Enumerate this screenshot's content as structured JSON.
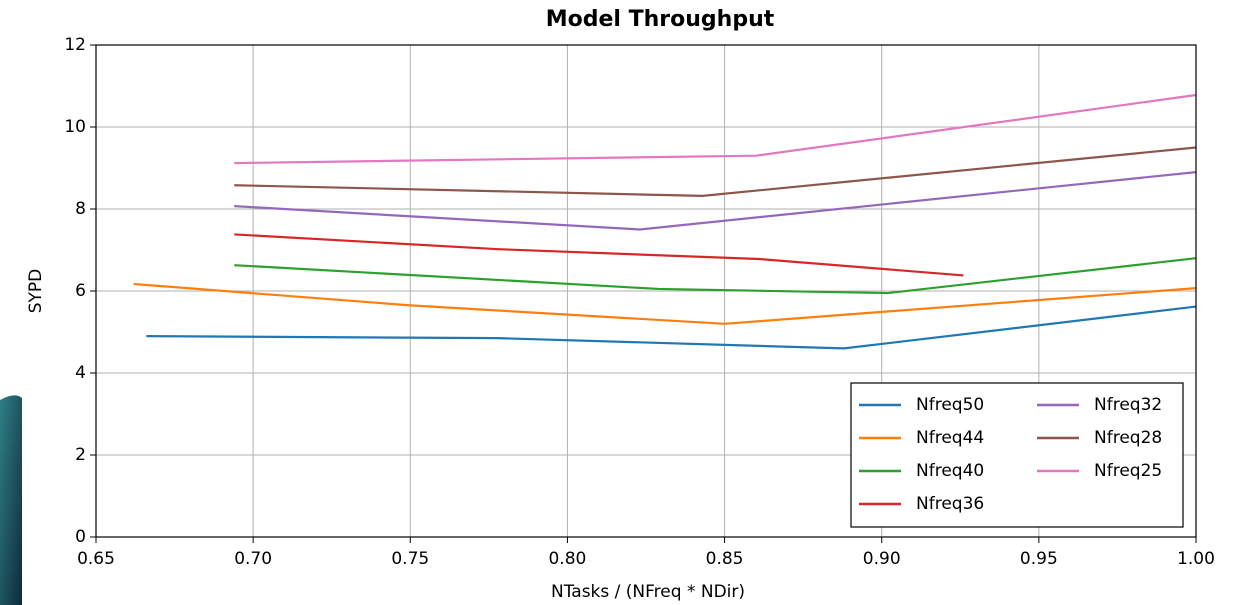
{
  "chart_data": {
    "type": "line",
    "title": "Model Throughput",
    "x_label": "NTasks / (NFreq * NDir)",
    "y_label": "SYPD",
    "xlim": [
      0.65,
      1.0
    ],
    "ylim": [
      0,
      12
    ],
    "xticks": [
      0.65,
      {
        "value": 0.7,
        "label": "0.70"
      },
      0.75,
      {
        "value": 0.8,
        "label": "0.80"
      },
      0.85,
      {
        "value": 0.9,
        "label": "0.90"
      },
      0.95,
      {
        "value": 1.0,
        "label": "1.00"
      }
    ],
    "yticks": [
      0,
      2,
      4,
      6,
      8,
      10,
      12
    ],
    "grid": true,
    "legend": "lower right",
    "series": [
      {
        "name": "Nfreq50",
        "color": "#1f77b4",
        "x": [
          0.666,
          0.778,
          0.888,
          1.0
        ],
        "values": [
          4.9,
          4.85,
          4.6,
          5.62
        ]
      },
      {
        "name": "Nfreq44",
        "color": "#ff7f0e",
        "x": [
          0.662,
          0.75,
          0.85,
          1.0
        ],
        "values": [
          6.17,
          5.65,
          5.2,
          6.07
        ]
      },
      {
        "name": "Nfreq40",
        "color": "#2ca02c",
        "x": [
          0.694,
          0.829,
          0.902,
          1.0
        ],
        "values": [
          6.63,
          6.05,
          5.95,
          6.8
        ]
      },
      {
        "name": "Nfreq36",
        "color": "#d62728",
        "x": [
          0.694,
          0.778,
          0.861,
          0.926
        ],
        "values": [
          7.38,
          7.02,
          6.78,
          6.38
        ]
      },
      {
        "name": "Nfreq32",
        "color": "#9467bd",
        "x": [
          0.694,
          0.823,
          1.0
        ],
        "values": [
          8.07,
          7.5,
          8.9
        ]
      },
      {
        "name": "Nfreq28",
        "color": "#8c564b",
        "x": [
          0.694,
          0.843,
          1.0
        ],
        "values": [
          8.58,
          8.32,
          9.5
        ]
      },
      {
        "name": "Nfreq25",
        "color": "#e377c2",
        "x": [
          0.694,
          0.86,
          1.0
        ],
        "values": [
          9.12,
          9.3,
          10.78
        ]
      }
    ]
  }
}
